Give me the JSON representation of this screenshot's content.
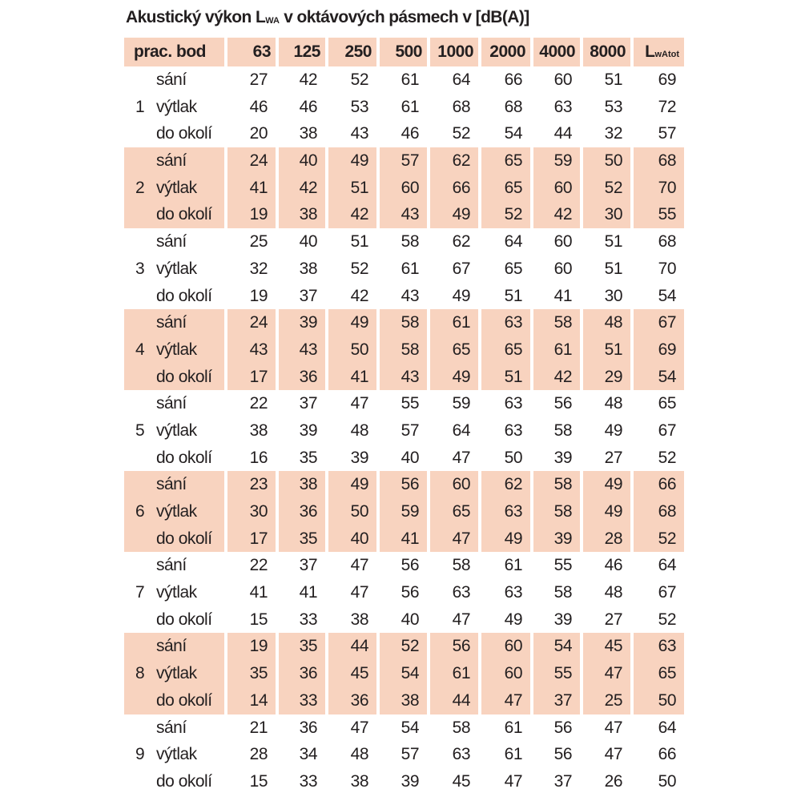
{
  "title": {
    "main": "Akustický výkon L",
    "sub": "WA",
    "rest": " v oktávových pásmech v [dB(A)]"
  },
  "header": {
    "first": "prac. bod",
    "bands": [
      "63",
      "125",
      "250",
      "500",
      "1000",
      "2000",
      "4000",
      "8000"
    ],
    "total_main": "L",
    "total_sub": "wAtot"
  },
  "row_labels": [
    "sání",
    "výtlak",
    "do okolí"
  ],
  "colors": {
    "shade": "#f8d3bf",
    "text": "#231f20"
  },
  "groups": [
    {
      "id": "1",
      "rows": [
        [
          27,
          42,
          52,
          61,
          64,
          66,
          60,
          51,
          69
        ],
        [
          46,
          46,
          53,
          61,
          68,
          68,
          63,
          53,
          72
        ],
        [
          20,
          38,
          43,
          46,
          52,
          54,
          44,
          32,
          57
        ]
      ]
    },
    {
      "id": "2",
      "rows": [
        [
          24,
          40,
          49,
          57,
          62,
          65,
          59,
          50,
          68
        ],
        [
          41,
          42,
          51,
          60,
          66,
          65,
          60,
          52,
          70
        ],
        [
          19,
          38,
          42,
          43,
          49,
          52,
          42,
          30,
          55
        ]
      ]
    },
    {
      "id": "3",
      "rows": [
        [
          25,
          40,
          51,
          58,
          62,
          64,
          60,
          51,
          68
        ],
        [
          32,
          38,
          52,
          61,
          67,
          65,
          60,
          51,
          70
        ],
        [
          19,
          37,
          42,
          43,
          49,
          51,
          41,
          30,
          54
        ]
      ]
    },
    {
      "id": "4",
      "rows": [
        [
          24,
          39,
          49,
          58,
          61,
          63,
          58,
          48,
          67
        ],
        [
          43,
          43,
          50,
          58,
          65,
          65,
          61,
          51,
          69
        ],
        [
          17,
          36,
          41,
          43,
          49,
          51,
          42,
          29,
          54
        ]
      ]
    },
    {
      "id": "5",
      "rows": [
        [
          22,
          37,
          47,
          55,
          59,
          63,
          56,
          48,
          65
        ],
        [
          38,
          39,
          48,
          57,
          64,
          63,
          58,
          49,
          67
        ],
        [
          16,
          35,
          39,
          40,
          47,
          50,
          39,
          27,
          52
        ]
      ]
    },
    {
      "id": "6",
      "rows": [
        [
          23,
          38,
          49,
          56,
          60,
          62,
          58,
          49,
          66
        ],
        [
          30,
          36,
          50,
          59,
          65,
          63,
          58,
          49,
          68
        ],
        [
          17,
          35,
          40,
          41,
          47,
          49,
          39,
          28,
          52
        ]
      ]
    },
    {
      "id": "7",
      "rows": [
        [
          22,
          37,
          47,
          56,
          58,
          61,
          55,
          46,
          64
        ],
        [
          41,
          41,
          47,
          56,
          63,
          63,
          58,
          48,
          67
        ],
        [
          15,
          33,
          38,
          40,
          47,
          49,
          39,
          27,
          52
        ]
      ]
    },
    {
      "id": "8",
      "rows": [
        [
          19,
          35,
          44,
          52,
          56,
          60,
          54,
          45,
          63
        ],
        [
          35,
          36,
          45,
          54,
          61,
          60,
          55,
          47,
          65
        ],
        [
          14,
          33,
          36,
          38,
          44,
          47,
          37,
          25,
          50
        ]
      ]
    },
    {
      "id": "9",
      "rows": [
        [
          21,
          36,
          47,
          54,
          58,
          61,
          56,
          47,
          64
        ],
        [
          28,
          34,
          48,
          57,
          63,
          61,
          56,
          47,
          66
        ],
        [
          15,
          33,
          38,
          39,
          45,
          47,
          37,
          26,
          50
        ]
      ]
    }
  ]
}
